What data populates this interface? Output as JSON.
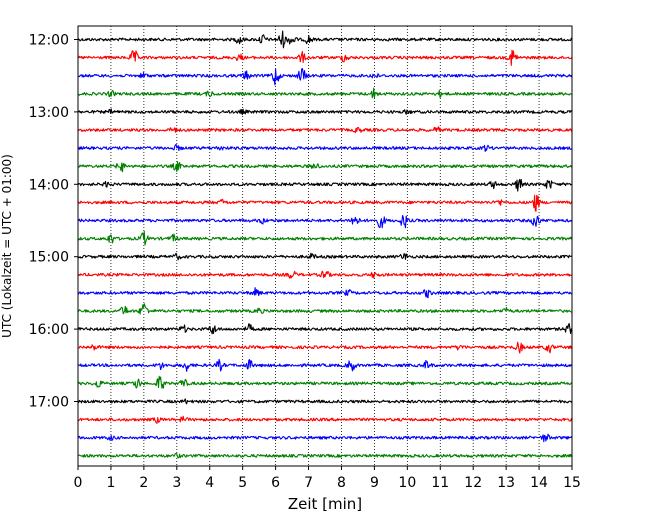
{
  "chart_data": {
    "type": "line",
    "title": "",
    "xlabel": "Zeit  [min]",
    "ylabel": "UTC (Lokalzeit = UTC + 01:00)",
    "xlim": [
      0,
      15
    ],
    "x_ticks": [
      "0",
      "1",
      "2",
      "3",
      "4",
      "5",
      "6",
      "7",
      "8",
      "9",
      "10",
      "11",
      "12",
      "13",
      "14",
      "15"
    ],
    "y_ticks": [
      "12:00",
      "13:00",
      "14:00",
      "15:00",
      "16:00",
      "17:00"
    ],
    "trace_interval_minutes": 15,
    "first_trace": "12:00",
    "last_trace": "17:45",
    "vertical_grid": "dotted",
    "trace_colors": [
      "#000000",
      "#ff0000",
      "#0000ff",
      "#008000"
    ],
    "traces": [
      {
        "start": "12:00",
        "events": [
          [
            4.9,
            0.5
          ],
          [
            5.6,
            0.6
          ],
          [
            6.2,
            1.0
          ],
          [
            6.5,
            0.7
          ],
          [
            7.0,
            0.5
          ]
        ]
      },
      {
        "start": "12:15",
        "events": [
          [
            1.7,
            0.9
          ],
          [
            4.9,
            0.4
          ],
          [
            6.8,
            0.6
          ],
          [
            8.1,
            0.5
          ],
          [
            13.2,
            1.1
          ]
        ]
      },
      {
        "start": "12:30",
        "events": [
          [
            2.0,
            0.3
          ],
          [
            5.1,
            0.5
          ],
          [
            6.0,
            1.2
          ],
          [
            6.8,
            1.0
          ],
          [
            9.0,
            0.3
          ]
        ]
      },
      {
        "start": "12:45",
        "events": [
          [
            1.0,
            0.3
          ],
          [
            4.0,
            0.3
          ],
          [
            9.0,
            0.6
          ],
          [
            11.0,
            0.3
          ]
        ]
      },
      {
        "start": "13:00",
        "events": [
          [
            1.0,
            0.2
          ],
          [
            5.0,
            0.2
          ],
          [
            10.0,
            0.2
          ]
        ]
      },
      {
        "start": "13:15",
        "events": [
          [
            2.9,
            0.3
          ],
          [
            8.5,
            0.3
          ],
          [
            10.9,
            0.3
          ]
        ]
      },
      {
        "start": "13:30",
        "events": [
          [
            3.0,
            0.3
          ],
          [
            4.3,
            0.2
          ],
          [
            12.4,
            0.3
          ]
        ]
      },
      {
        "start": "13:45",
        "events": [
          [
            1.3,
            0.7
          ],
          [
            3.0,
            0.6
          ],
          [
            7.2,
            0.4
          ]
        ]
      },
      {
        "start": "14:00",
        "events": [
          [
            0.9,
            0.3
          ],
          [
            12.6,
            0.4
          ],
          [
            13.4,
            0.9
          ],
          [
            14.3,
            0.6
          ]
        ]
      },
      {
        "start": "14:15",
        "events": [
          [
            4.4,
            0.3
          ],
          [
            12.8,
            0.3
          ],
          [
            13.9,
            1.1
          ]
        ]
      },
      {
        "start": "14:30",
        "events": [
          [
            5.6,
            0.3
          ],
          [
            8.4,
            0.8
          ],
          [
            9.2,
            0.9
          ],
          [
            9.9,
            0.9
          ],
          [
            13.9,
            0.9
          ]
        ]
      },
      {
        "start": "14:45",
        "events": [
          [
            1.0,
            0.6
          ],
          [
            2.0,
            0.8
          ],
          [
            2.9,
            0.4
          ]
        ]
      },
      {
        "start": "15:00",
        "events": [
          [
            3.0,
            0.3
          ],
          [
            7.1,
            0.3
          ],
          [
            9.9,
            0.4
          ]
        ]
      },
      {
        "start": "15:15",
        "events": [
          [
            6.5,
            0.5
          ],
          [
            7.5,
            0.6
          ],
          [
            9.0,
            0.3
          ]
        ]
      },
      {
        "start": "15:30",
        "events": [
          [
            5.4,
            0.5
          ],
          [
            8.2,
            0.3
          ],
          [
            10.6,
            0.5
          ]
        ]
      },
      {
        "start": "15:45",
        "events": [
          [
            1.4,
            0.6
          ],
          [
            2.0,
            1.1
          ],
          [
            5.5,
            0.3
          ],
          [
            13.0,
            0.3
          ]
        ]
      },
      {
        "start": "16:00",
        "events": [
          [
            3.2,
            0.4
          ],
          [
            4.1,
            0.6
          ],
          [
            5.2,
            0.5
          ],
          [
            14.9,
            0.6
          ]
        ]
      },
      {
        "start": "16:15",
        "events": [
          [
            0.5,
            0.3
          ],
          [
            11.6,
            0.3
          ],
          [
            13.4,
            0.6
          ],
          [
            14.3,
            0.6
          ]
        ]
      },
      {
        "start": "16:30",
        "events": [
          [
            2.5,
            0.4
          ],
          [
            3.3,
            0.6
          ],
          [
            4.3,
            0.6
          ],
          [
            5.2,
            0.6
          ],
          [
            8.3,
            0.8
          ],
          [
            10.6,
            0.5
          ]
        ]
      },
      {
        "start": "16:45",
        "events": [
          [
            0.6,
            0.5
          ],
          [
            1.8,
            0.6
          ],
          [
            2.5,
            1.0
          ],
          [
            3.2,
            0.5
          ]
        ]
      },
      {
        "start": "17:00",
        "events": [
          [
            3.3,
            0.2
          ]
        ]
      },
      {
        "start": "17:15",
        "events": [
          [
            2.4,
            0.3
          ],
          [
            3.2,
            0.3
          ]
        ]
      },
      {
        "start": "17:30",
        "events": [
          [
            1.0,
            0.2
          ],
          [
            14.2,
            0.5
          ]
        ]
      },
      {
        "start": "17:45",
        "events": [
          [
            3.0,
            0.2
          ]
        ]
      }
    ]
  }
}
